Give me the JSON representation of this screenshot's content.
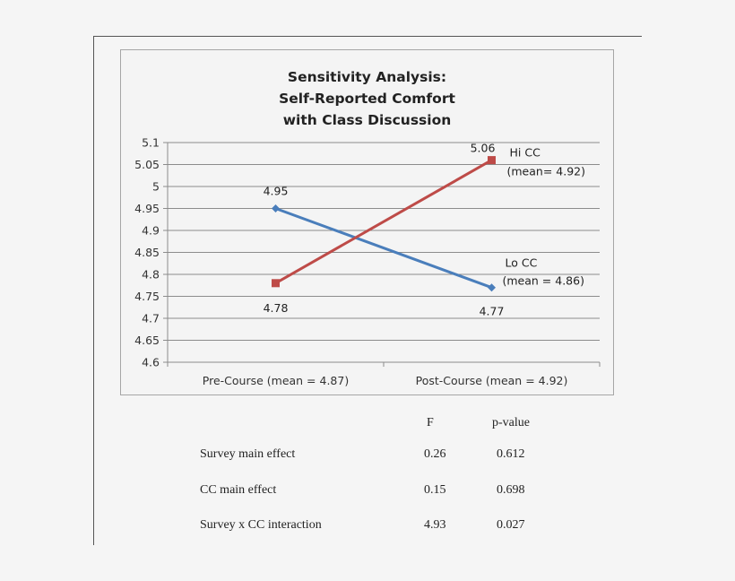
{
  "chart_data": {
    "type": "line",
    "title": "Sensitivity Analysis: Self-Reported Comfort with Class Discussion",
    "title_lines": [
      "Sensitivity Analysis:",
      "Self-Reported Comfort",
      "with Class Discussion"
    ],
    "categories": [
      "Pre-Course (mean = 4.87)",
      "Post-Course (mean = 4.92)"
    ],
    "xlabel": "",
    "ylabel": "",
    "ylim": [
      4.6,
      5.1
    ],
    "yticks": [
      "5.1",
      "5.05",
      "5",
      "4.95",
      "4.9",
      "4.85",
      "4.8",
      "4.75",
      "4.7",
      "4.65",
      "4.6"
    ],
    "grid": true,
    "series": [
      {
        "name": "Lo CC",
        "label": "Lo CC",
        "sublabel": "(mean = 4.86)",
        "values": [
          4.95,
          4.77
        ],
        "value_labels": [
          "4.95",
          "4.77"
        ],
        "color": "#4a7ebb",
        "marker": "diamond"
      },
      {
        "name": "Hi CC",
        "label": "Hi CC",
        "sublabel": "(mean= 4.92)",
        "values": [
          4.78,
          5.06
        ],
        "value_labels": [
          "4.78",
          "5.06"
        ],
        "color": "#be4b48",
        "marker": "square"
      }
    ]
  },
  "stats_table": {
    "headers": [
      "",
      "F",
      "p-value"
    ],
    "rows": [
      {
        "effect": "Survey main effect",
        "F": "0.26",
        "p": "0.612"
      },
      {
        "effect": "CC main effect",
        "F": "0.15",
        "p": "0.698"
      },
      {
        "effect": "Survey x CC interaction",
        "F": "4.93",
        "p": "0.027"
      }
    ]
  }
}
